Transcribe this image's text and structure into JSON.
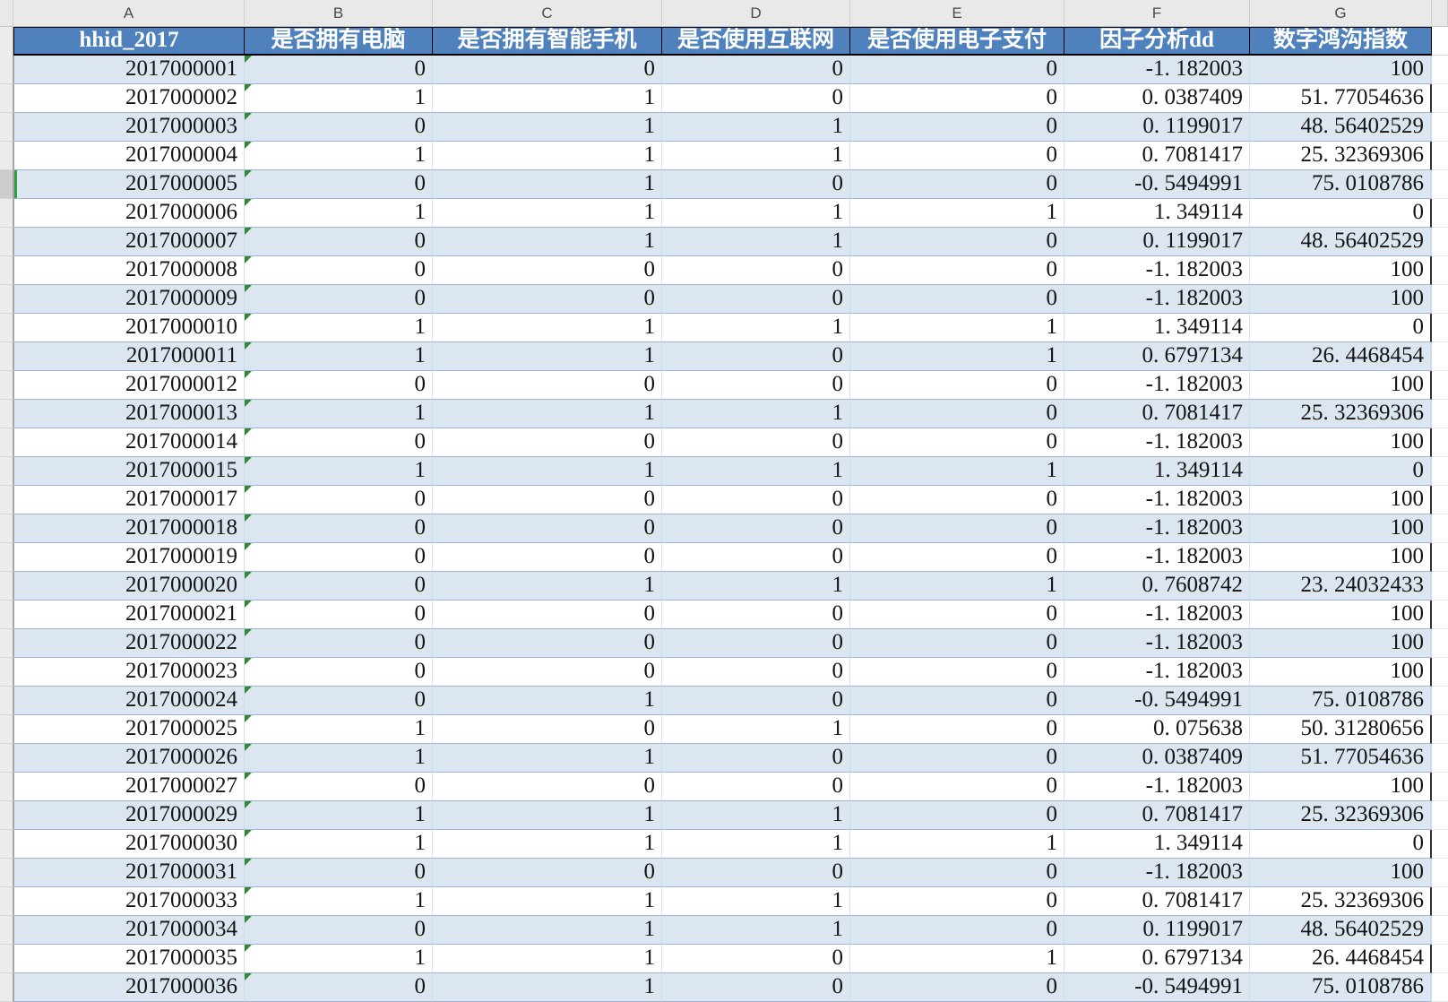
{
  "spreadsheet": {
    "column_letters": [
      "A",
      "B",
      "C",
      "D",
      "E",
      "F",
      "G"
    ],
    "header_row": [
      "hhid_2017",
      "是否拥有电脑",
      "是否拥有智能手机",
      "是否使用互联网",
      "是否使用电子支付",
      "因子分析dd",
      "数字鸿沟指数"
    ],
    "rows": [
      [
        "2017000001",
        "0",
        "0",
        "0",
        "0",
        "-1. 182003",
        "100"
      ],
      [
        "2017000002",
        "1",
        "1",
        "0",
        "0",
        "0. 0387409",
        "51. 77054636"
      ],
      [
        "2017000003",
        "0",
        "1",
        "1",
        "0",
        "0. 1199017",
        "48. 56402529"
      ],
      [
        "2017000004",
        "1",
        "1",
        "1",
        "0",
        "0. 7081417",
        "25. 32369306"
      ],
      [
        "2017000005",
        "0",
        "1",
        "0",
        "0",
        "-0. 5494991",
        "75. 0108786"
      ],
      [
        "2017000006",
        "1",
        "1",
        "1",
        "1",
        "1. 349114",
        "0"
      ],
      [
        "2017000007",
        "0",
        "1",
        "1",
        "0",
        "0. 1199017",
        "48. 56402529"
      ],
      [
        "2017000008",
        "0",
        "0",
        "0",
        "0",
        "-1. 182003",
        "100"
      ],
      [
        "2017000009",
        "0",
        "0",
        "0",
        "0",
        "-1. 182003",
        "100"
      ],
      [
        "2017000010",
        "1",
        "1",
        "1",
        "1",
        "1. 349114",
        "0"
      ],
      [
        "2017000011",
        "1",
        "1",
        "0",
        "1",
        "0. 6797134",
        "26. 4468454"
      ],
      [
        "2017000012",
        "0",
        "0",
        "0",
        "0",
        "-1. 182003",
        "100"
      ],
      [
        "2017000013",
        "1",
        "1",
        "1",
        "0",
        "0. 7081417",
        "25. 32369306"
      ],
      [
        "2017000014",
        "0",
        "0",
        "0",
        "0",
        "-1. 182003",
        "100"
      ],
      [
        "2017000015",
        "1",
        "1",
        "1",
        "1",
        "1. 349114",
        "0"
      ],
      [
        "2017000017",
        "0",
        "0",
        "0",
        "0",
        "-1. 182003",
        "100"
      ],
      [
        "2017000018",
        "0",
        "0",
        "0",
        "0",
        "-1. 182003",
        "100"
      ],
      [
        "2017000019",
        "0",
        "0",
        "0",
        "0",
        "-1. 182003",
        "100"
      ],
      [
        "2017000020",
        "0",
        "1",
        "1",
        "1",
        "0. 7608742",
        "23. 24032433"
      ],
      [
        "2017000021",
        "0",
        "0",
        "0",
        "0",
        "-1. 182003",
        "100"
      ],
      [
        "2017000022",
        "0",
        "0",
        "0",
        "0",
        "-1. 182003",
        "100"
      ],
      [
        "2017000023",
        "0",
        "0",
        "0",
        "0",
        "-1. 182003",
        "100"
      ],
      [
        "2017000024",
        "0",
        "1",
        "0",
        "0",
        "-0. 5494991",
        "75. 0108786"
      ],
      [
        "2017000025",
        "1",
        "0",
        "1",
        "0",
        "0. 075638",
        "50. 31280656"
      ],
      [
        "2017000026",
        "1",
        "1",
        "0",
        "0",
        "0. 0387409",
        "51. 77054636"
      ],
      [
        "2017000027",
        "0",
        "0",
        "0",
        "0",
        "-1. 182003",
        "100"
      ],
      [
        "2017000029",
        "1",
        "1",
        "1",
        "0",
        "0. 7081417",
        "25. 32369306"
      ],
      [
        "2017000030",
        "1",
        "1",
        "1",
        "1",
        "1. 349114",
        "0"
      ],
      [
        "2017000031",
        "0",
        "0",
        "0",
        "0",
        "-1. 182003",
        "100"
      ],
      [
        "2017000033",
        "1",
        "1",
        "1",
        "0",
        "0. 7081417",
        "25. 32369306"
      ],
      [
        "2017000034",
        "0",
        "1",
        "1",
        "0",
        "0. 1199017",
        "48. 56402529"
      ],
      [
        "2017000035",
        "1",
        "1",
        "0",
        "1",
        "0. 6797134",
        "26. 4468454"
      ],
      [
        "2017000036",
        "0",
        "1",
        "0",
        "0",
        "-0. 5494991",
        "75. 0108786"
      ]
    ],
    "selected_row_index": 4,
    "colors": {
      "header_bg": "#4f81bd",
      "header_text": "#ffffff",
      "stripe_bg": "#dce6f1",
      "row_line": "#9eb6d8",
      "letters_bg": "#e9e9e9",
      "error_triangle": "#2e8b2e",
      "selection_green": "#2f9e3f"
    }
  }
}
